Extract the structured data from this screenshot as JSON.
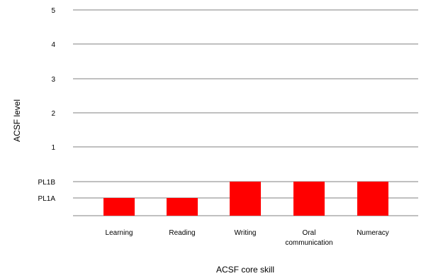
{
  "chart_data": {
    "type": "bar",
    "title": "",
    "xlabel": "ACSF core skill",
    "ylabel": "ACSF level",
    "grid": true,
    "legend": "none",
    "y_levels": [
      "PL1A",
      "PL1B",
      "1",
      "2",
      "3",
      "4",
      "5"
    ],
    "categories": [
      [
        "Learning"
      ],
      [
        "Reading"
      ],
      [
        "Writing"
      ],
      [
        "Oral",
        "communication"
      ],
      [
        "Numeracy"
      ]
    ],
    "values": [
      "PL1A",
      "PL1A",
      "PL1B",
      "PL1B",
      "PL1B"
    ],
    "colors": {
      "bar": "#ff0000",
      "grid": "#808080",
      "text": "#000000"
    }
  }
}
